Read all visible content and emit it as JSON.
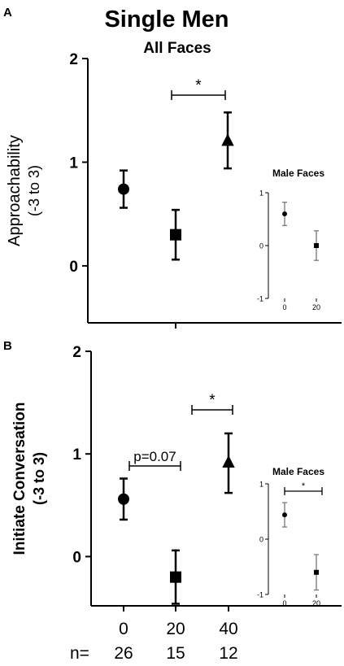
{
  "title": "Single Men",
  "subtitle": "All Faces",
  "categories": [
    "0",
    "20",
    "40"
  ],
  "n_label": "n=",
  "n_values": [
    "26",
    "15",
    "12"
  ],
  "chart_data": [
    {
      "panel_label": "A",
      "type": "scatter",
      "title": "All Faces",
      "ylabel": [
        "Approachability",
        "(-3 to 3)"
      ],
      "ylim": [
        -0.55,
        2
      ],
      "yticks": [
        "0",
        "1",
        "2"
      ],
      "categories": [
        "0",
        "20",
        "40"
      ],
      "markers": [
        "circle",
        "square",
        "triangle"
      ],
      "values": [
        0.74,
        0.3,
        1.21
      ],
      "err_low": [
        0.56,
        0.06,
        0.94
      ],
      "err_high": [
        0.92,
        0.54,
        1.48
      ],
      "significance": [
        {
          "from": "20",
          "to": "40",
          "label": "*"
        }
      ],
      "inset": {
        "type": "scatter",
        "title": "Male Faces",
        "ylim": [
          -1,
          1
        ],
        "yticks": [
          "1",
          "0",
          "-1"
        ],
        "categories": [
          "0",
          "20"
        ],
        "markers": [
          "circle",
          "square"
        ],
        "values": [
          0.6,
          0.0
        ],
        "err_low": [
          0.38,
          -0.28
        ],
        "err_high": [
          0.82,
          0.28
        ],
        "significance": []
      }
    },
    {
      "panel_label": "B",
      "type": "scatter",
      "ylabel": [
        "Initiate Conversation",
        "(-3 to 3)"
      ],
      "ylim": [
        -0.48,
        2
      ],
      "yticks": [
        "0",
        "1",
        "2"
      ],
      "categories": [
        "0",
        "20",
        "40"
      ],
      "markers": [
        "circle",
        "square",
        "triangle"
      ],
      "values": [
        0.56,
        -0.2,
        0.92
      ],
      "err_low": [
        0.36,
        -0.46,
        0.62
      ],
      "err_high": [
        0.76,
        0.06,
        1.2
      ],
      "significance": [
        {
          "from": "0",
          "to": "20",
          "label": "p=0.07"
        },
        {
          "from": "20",
          "to": "40",
          "label": "*"
        }
      ],
      "inset": {
        "type": "scatter",
        "title": "Male Faces",
        "ylim": [
          -1,
          1
        ],
        "yticks": [
          "1",
          "0",
          "-1"
        ],
        "categories": [
          "0",
          "20"
        ],
        "markers": [
          "circle",
          "square"
        ],
        "values": [
          0.44,
          -0.6
        ],
        "err_low": [
          0.22,
          -0.92
        ],
        "err_high": [
          0.66,
          -0.28
        ],
        "significance": [
          {
            "from": "0",
            "to": "20",
            "label": "*"
          }
        ]
      }
    }
  ]
}
